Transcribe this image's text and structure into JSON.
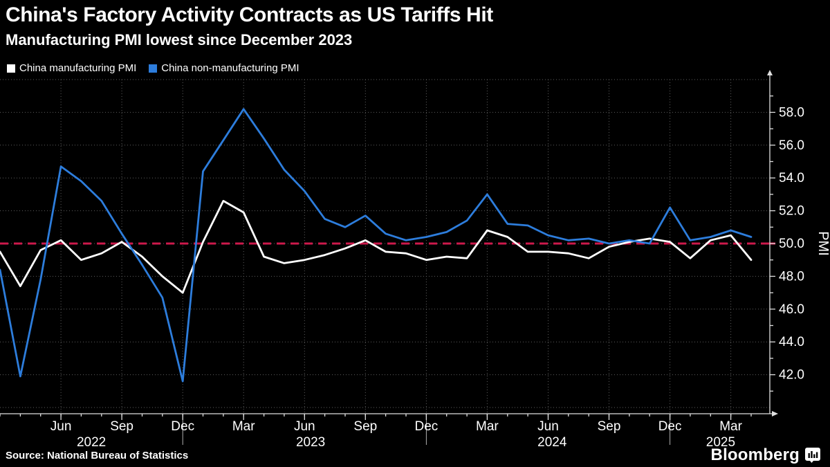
{
  "header": {
    "title": "China's Factory Activity Contracts as US Tariffs Hit",
    "subtitle": "Manufacturing PMI lowest since December 2023"
  },
  "legend": {
    "items": [
      {
        "label": "China manufacturing PMI",
        "color": "#ffffff"
      },
      {
        "label": "China non-manufacturing PMI",
        "color": "#2d7ddc"
      }
    ]
  },
  "footer": {
    "source": "Source: National Bureau of Statistics",
    "brand": "Bloomberg"
  },
  "chart_data": {
    "type": "line",
    "title": "China's Factory Activity Contracts as US Tariffs Hit",
    "subtitle": "Manufacturing PMI lowest since December 2023",
    "ylabel": "PMI",
    "ylim": [
      39.6,
      60.3
    ],
    "grid": true,
    "legend_position": "top-left",
    "x_months": [
      "2022-03",
      "2022-04",
      "2022-05",
      "2022-06",
      "2022-07",
      "2022-08",
      "2022-09",
      "2022-10",
      "2022-11",
      "2022-12",
      "2023-01",
      "2023-02",
      "2023-03",
      "2023-04",
      "2023-05",
      "2023-06",
      "2023-07",
      "2023-08",
      "2023-09",
      "2023-10",
      "2023-11",
      "2023-12",
      "2024-01",
      "2024-02",
      "2024-03",
      "2024-04",
      "2024-05",
      "2024-06",
      "2024-07",
      "2024-08",
      "2024-09",
      "2024-10",
      "2024-11",
      "2024-12",
      "2025-01",
      "2025-02",
      "2025-03",
      "2025-04"
    ],
    "series": [
      {
        "name": "China manufacturing PMI",
        "color": "#ffffff",
        "values": [
          49.5,
          47.4,
          49.6,
          50.2,
          49.0,
          49.4,
          50.1,
          49.2,
          48.0,
          47.0,
          50.1,
          52.6,
          51.9,
          49.2,
          48.8,
          49.0,
          49.3,
          49.7,
          50.2,
          49.5,
          49.4,
          49.0,
          49.2,
          49.1,
          50.8,
          50.4,
          49.5,
          49.5,
          49.4,
          49.1,
          49.8,
          50.1,
          50.3,
          50.1,
          49.1,
          50.2,
          50.5,
          49.0
        ]
      },
      {
        "name": "China non-manufacturing PMI",
        "color": "#2d7ddc",
        "values": [
          48.4,
          41.9,
          47.8,
          54.7,
          53.8,
          52.6,
          50.6,
          48.7,
          46.7,
          41.6,
          54.4,
          56.3,
          58.2,
          56.4,
          54.5,
          53.2,
          51.5,
          51.0,
          51.7,
          50.6,
          50.2,
          50.4,
          50.7,
          51.4,
          53.0,
          51.2,
          51.1,
          50.5,
          50.2,
          50.3,
          50.0,
          50.2,
          50.0,
          52.2,
          50.2,
          50.4,
          50.8,
          50.4
        ]
      }
    ],
    "reference_line": {
      "value": 50.0,
      "color": "#cd194b",
      "style": "dashed"
    },
    "y_gridlines": [
      40,
      42,
      44,
      46,
      48,
      50,
      52,
      54,
      56,
      58,
      60
    ],
    "y_ticks_labeled": [
      42,
      44,
      46,
      48,
      50,
      52,
      54,
      56,
      58
    ],
    "x_ticks": [
      {
        "label": "Jun",
        "i": 3
      },
      {
        "label": "Sep",
        "i": 6
      },
      {
        "label": "Dec",
        "i": 9
      },
      {
        "label": "Mar",
        "i": 12
      },
      {
        "label": "Jun",
        "i": 15
      },
      {
        "label": "Sep",
        "i": 18
      },
      {
        "label": "Dec",
        "i": 21
      },
      {
        "label": "Mar",
        "i": 24
      },
      {
        "label": "Jun",
        "i": 27
      },
      {
        "label": "Sep",
        "i": 30
      },
      {
        "label": "Dec",
        "i": 33
      },
      {
        "label": "Mar",
        "i": 36
      }
    ],
    "year_labels": [
      {
        "label": "2022",
        "i": 4.5
      },
      {
        "label": "2023",
        "i": 15.3
      },
      {
        "label": "2024",
        "i": 27.2
      },
      {
        "label": "2025",
        "i": 35.5
      }
    ],
    "year_separators_i": [
      9,
      21,
      33
    ]
  }
}
